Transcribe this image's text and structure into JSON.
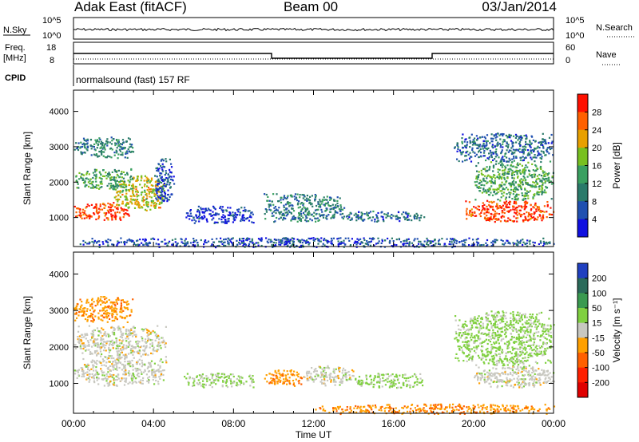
{
  "header": {
    "station": "Adak East (fitACF)",
    "beam": "Beam 00",
    "date": "03/Jan/2014"
  },
  "strips": {
    "sky_label": "N.Sky",
    "search_label": "N.Search",
    "sky_ticks": [
      "10^5",
      "10^0"
    ],
    "search_ticks": [
      "10^5",
      "10^0"
    ],
    "freq_label_1": "Freq.",
    "freq_label_2": "[MHz]",
    "freq_ticks": [
      "18",
      "8"
    ],
    "nave_label": "Nave",
    "nave_ticks": [
      "60",
      "0"
    ],
    "cpid_label": "CPID",
    "cpid_text": "normalsound (fast) 157 RF"
  },
  "chart_data": [
    {
      "type": "heatmap",
      "panel": "power",
      "ylabel": "Slant Range [km]",
      "xlabel": "",
      "yticks": [
        "1000",
        "2000",
        "3000",
        "4000"
      ],
      "ylim": [
        180,
        4600
      ],
      "xlim": [
        0,
        24
      ],
      "colorbar_label": "Power [dB]",
      "colorbar_ticks": [
        "4",
        "8",
        "12",
        "16",
        "20",
        "24",
        "28"
      ],
      "colorbar_colors": [
        "#1010e0",
        "#2050b0",
        "#2a7a6a",
        "#3aa060",
        "#78c020",
        "#e8a000",
        "#ff6000",
        "#ff1000"
      ],
      "regions": [
        {
          "t0": 0.0,
          "t1": 2.8,
          "r0": 950,
          "r1": 1450,
          "value": 28
        },
        {
          "t0": 2.0,
          "t1": 4.6,
          "r0": 1200,
          "r1": 2200,
          "value": 20
        },
        {
          "t0": 0.0,
          "t1": 3.0,
          "r0": 1800,
          "r1": 2400,
          "value": 14
        },
        {
          "t0": 0.0,
          "t1": 3.0,
          "r0": 2700,
          "r1": 3300,
          "value": 10
        },
        {
          "t0": 4.0,
          "t1": 5.0,
          "r0": 1450,
          "r1": 2700,
          "value": 6
        },
        {
          "t0": 5.5,
          "t1": 9.0,
          "r0": 850,
          "r1": 1350,
          "value": 4
        },
        {
          "t0": 9.5,
          "t1": 13.5,
          "r0": 900,
          "r1": 1700,
          "value": 10
        },
        {
          "t0": 13.0,
          "t1": 17.5,
          "r0": 900,
          "r1": 1200,
          "value": 8
        },
        {
          "t0": 19.5,
          "t1": 24.0,
          "r0": 900,
          "r1": 1500,
          "value": 28
        },
        {
          "t0": 20.0,
          "t1": 24.0,
          "r0": 1500,
          "r1": 2600,
          "value": 14
        },
        {
          "t0": 19.0,
          "t1": 24.0,
          "r0": 2600,
          "r1": 3400,
          "value": 8
        },
        {
          "t0": 0.0,
          "t1": 24.0,
          "r0": 180,
          "r1": 450,
          "value": 6
        }
      ]
    },
    {
      "type": "heatmap",
      "panel": "velocity",
      "ylabel": "Slant Range [km]",
      "xlabel": "Time UT",
      "yticks": [
        "1000",
        "2000",
        "3000",
        "4000"
      ],
      "xticks": [
        "00:00",
        "04:00",
        "08:00",
        "12:00",
        "16:00",
        "20:00",
        "00:00"
      ],
      "ylim": [
        180,
        4600
      ],
      "xlim": [
        0,
        24
      ],
      "colorbar_label": "Velocity [m s⁻¹]",
      "colorbar_ticks": [
        "200",
        "100",
        "50",
        "15",
        "-15",
        "-50",
        "-100",
        "-200"
      ],
      "colorbar_colors": [
        "#2040c0",
        "#2a6a5a",
        "#3a9a50",
        "#80d040",
        "#c8c8c0",
        "#ffa000",
        "#ff6000",
        "#ff2000",
        "#e00000"
      ],
      "regions": [
        {
          "t0": 0.0,
          "t1": 4.6,
          "r0": 950,
          "r1": 1700,
          "value": 0
        },
        {
          "t0": 0.0,
          "t1": 4.6,
          "r0": 1700,
          "r1": 2600,
          "value": 0
        },
        {
          "t0": 0.0,
          "t1": 3.0,
          "r0": 2700,
          "r1": 3400,
          "value": -40
        },
        {
          "t0": 5.5,
          "t1": 9.0,
          "r0": 900,
          "r1": 1300,
          "value": 20
        },
        {
          "t0": 9.5,
          "t1": 11.5,
          "r0": 950,
          "r1": 1400,
          "value": -40
        },
        {
          "t0": 11.5,
          "t1": 14.0,
          "r0": 950,
          "r1": 1500,
          "value": 0
        },
        {
          "t0": 14.0,
          "t1": 17.5,
          "r0": 900,
          "r1": 1300,
          "value": 25
        },
        {
          "t0": 20.0,
          "t1": 24.0,
          "r0": 900,
          "r1": 1500,
          "value": 0
        },
        {
          "t0": 19.0,
          "t1": 24.0,
          "r0": 1500,
          "r1": 3000,
          "value": 25
        },
        {
          "t0": 12.0,
          "t1": 24.0,
          "r0": 180,
          "r1": 450,
          "value": -45
        }
      ]
    }
  ]
}
